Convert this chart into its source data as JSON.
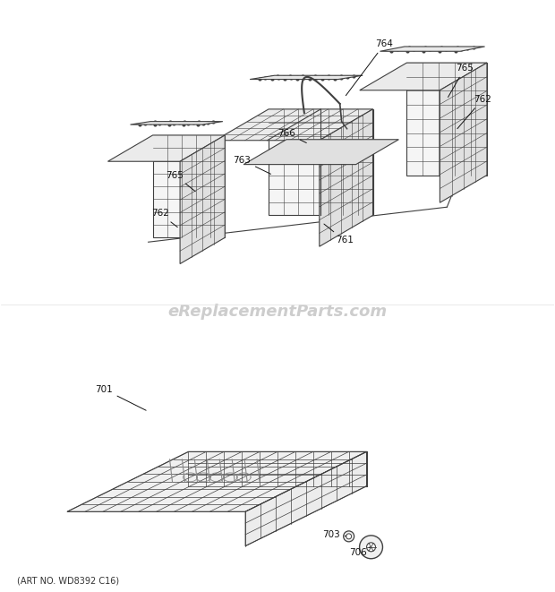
{
  "bg_color": "#ffffff",
  "watermark_text": "eReplacementParts.com",
  "watermark_color": "#c8c8c8",
  "watermark_fontsize": 13,
  "art_no_text": "(ART NO. WD8392 C16)",
  "art_no_fontsize": 7,
  "label_fontsize": 7.5,
  "diagram_color": "#404040",
  "diagram_color_light": "#888888"
}
